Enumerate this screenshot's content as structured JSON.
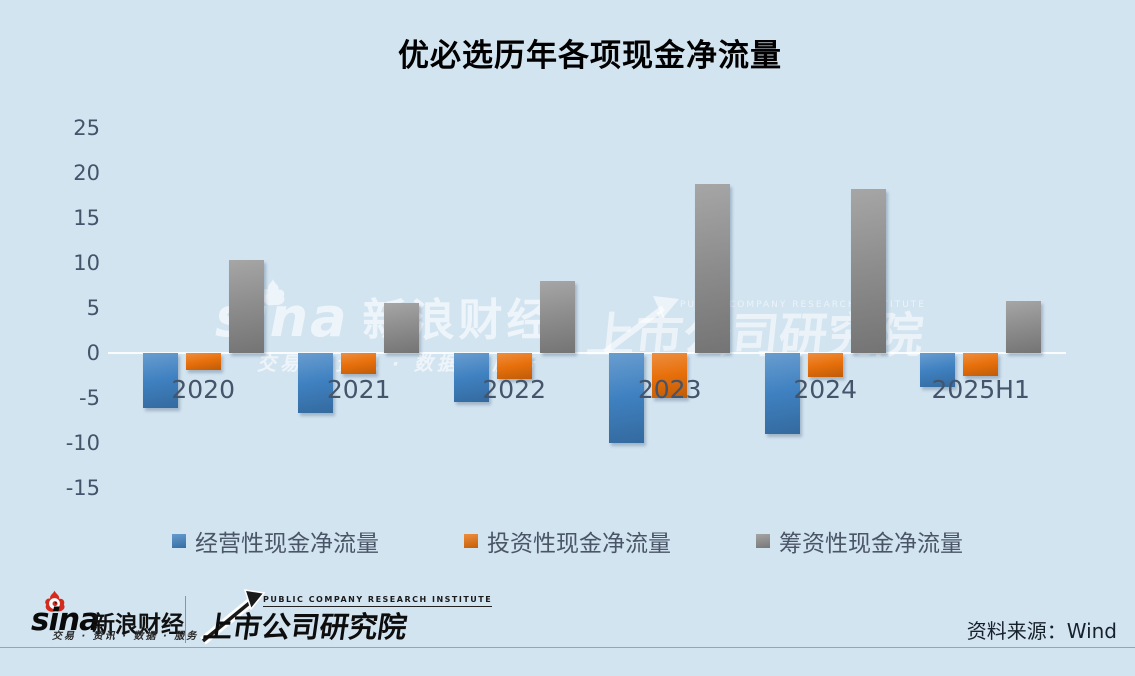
{
  "title": "优必选历年各项现金净流量",
  "colors": {
    "background": "#d3e4f1",
    "operating_blue": "#3f81c1",
    "investing_orange": "#e8700b",
    "financing_gray": "#8d8d8d",
    "axis_text": "#44546a",
    "sina_red": "#d52b1e"
  },
  "chart_data": {
    "type": "bar",
    "title": "优必选历年各项现金净流量",
    "categories": [
      "2020",
      "2021",
      "2022",
      "2023",
      "2024",
      "2025H1"
    ],
    "series": [
      {
        "name": "经营性现金净流量",
        "color": "#3f81c1",
        "values": [
          -6.1,
          -6.7,
          -5.4,
          -10.0,
          -9.0,
          -3.8
        ]
      },
      {
        "name": "投资性现金净流量",
        "color": "#e8700b",
        "values": [
          -1.9,
          -2.3,
          -2.9,
          -5.0,
          -2.7,
          -2.6
        ]
      },
      {
        "name": "筹资性现金净流量",
        "color": "#8d8d8d",
        "values": [
          10.3,
          5.6,
          8.0,
          18.8,
          18.2,
          5.8
        ]
      }
    ],
    "ylim": [
      -15,
      25
    ],
    "yticks": [
      25,
      20,
      15,
      10,
      5,
      0,
      -5,
      -10,
      -15
    ],
    "ytick_step": 5,
    "grid": false,
    "legend_position": "bottom"
  },
  "watermarks": {
    "sina_script": "sina",
    "sina_cn": "新浪财经",
    "sina_tagline": "交易 · 资讯 · 数据 · 服务",
    "pcri_en": "PUBLIC COMPANY RESEARCH INSTITUTE",
    "pcri_cn": "上市公司研究院"
  },
  "footer": {
    "sina_wordmark": "sina",
    "sina_cn": "新浪财经",
    "sina_tagline": "交易 · 资讯 · 数据 · 服务",
    "pcri_en": "PUBLIC COMPANY RESEARCH INSTITUTE",
    "pcri_cn": "上市公司研究院",
    "source": "资料来源：Wind"
  }
}
